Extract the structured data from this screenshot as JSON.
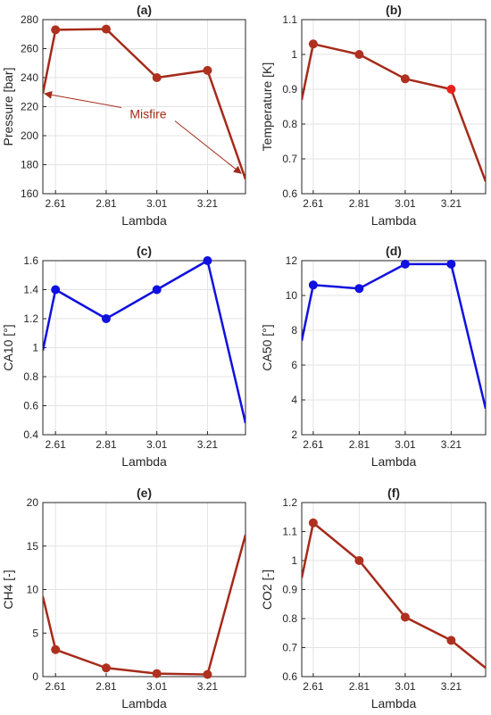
{
  "chart_data": [
    {
      "type": "line",
      "title": "(a)",
      "xlabel": "Lambda",
      "ylabel": "Pressure [bar]",
      "x": [
        2.56,
        2.61,
        2.81,
        3.01,
        3.21,
        3.36
      ],
      "xticks": [
        2.61,
        2.81,
        3.01,
        3.21
      ],
      "xticklabels": [
        "2.61",
        "2.81",
        "3.01",
        "3.21"
      ],
      "xlim": [
        2.56,
        3.36
      ],
      "ylim": [
        160,
        280
      ],
      "yticks": [
        160,
        180,
        200,
        220,
        240,
        260,
        280
      ],
      "yticklabels": [
        "160",
        "180",
        "200",
        "220",
        "240",
        "260",
        "280"
      ],
      "grid": true,
      "series": [
        {
          "color": "#a52a1a",
          "marker_color": "#b03020",
          "values": [
            229,
            273,
            273.5,
            240,
            245,
            170
          ],
          "markers": [
            false,
            true,
            true,
            true,
            true,
            false
          ]
        }
      ],
      "annotation": {
        "text": "Misfire",
        "color": "#a52a1a",
        "arrow_targets": [
          {
            "x": 2.56,
            "y": 229
          },
          {
            "x": 3.35,
            "y": 174
          }
        ]
      }
    },
    {
      "type": "line",
      "title": "(b)",
      "xlabel": "Lambda",
      "ylabel": "Temperature [K]",
      "x": [
        2.56,
        2.61,
        2.81,
        3.01,
        3.21,
        3.36
      ],
      "xticks": [
        2.61,
        2.81,
        3.01,
        3.21
      ],
      "xticklabels": [
        "2.61",
        "2.81",
        "3.01",
        "3.21"
      ],
      "xlim": [
        2.56,
        3.36
      ],
      "ylim": [
        0.6,
        1.1
      ],
      "yticks": [
        0.6,
        0.7,
        0.8,
        0.9,
        1.0,
        1.1
      ],
      "yticklabels": [
        "0.6",
        "0.7",
        "0.8",
        "0.9",
        "1",
        "1.1"
      ],
      "grid": true,
      "series": [
        {
          "color": "#a52a1a",
          "marker_color": "#b03020",
          "values": [
            0.87,
            1.03,
            1.0,
            0.93,
            0.9,
            0.635
          ],
          "markers": [
            false,
            true,
            true,
            true,
            true,
            false
          ],
          "last_marker_color": "#e8211a"
        }
      ]
    },
    {
      "type": "line",
      "title": "(c)",
      "xlabel": "Lambda",
      "ylabel": "CA10 [°]",
      "x": [
        2.56,
        2.61,
        2.81,
        3.01,
        3.21,
        3.36
      ],
      "xticks": [
        2.61,
        2.81,
        3.01,
        3.21
      ],
      "xticklabels": [
        "2.61",
        "2.81",
        "3.01",
        "3.21"
      ],
      "xlim": [
        2.56,
        3.36
      ],
      "ylim": [
        0.4,
        1.6
      ],
      "yticks": [
        0.4,
        0.6,
        0.8,
        1.0,
        1.2,
        1.4,
        1.6
      ],
      "yticklabels": [
        "0.4",
        "0.6",
        "0.8",
        "1",
        "1.2",
        "1.4",
        "1.6"
      ],
      "grid": true,
      "series": [
        {
          "color": "#1010e0",
          "marker_color": "#1010e0",
          "values": [
            0.98,
            1.4,
            1.2,
            1.4,
            1.6,
            0.48
          ],
          "markers": [
            false,
            true,
            true,
            true,
            true,
            false
          ]
        }
      ]
    },
    {
      "type": "line",
      "title": "(d)",
      "xlabel": "Lambda",
      "ylabel": "CA50 [°]",
      "x": [
        2.56,
        2.61,
        2.81,
        3.01,
        3.21,
        3.36
      ],
      "xticks": [
        2.61,
        2.81,
        3.01,
        3.21
      ],
      "xticklabels": [
        "2.61",
        "2.81",
        "3.01",
        "3.21"
      ],
      "xlim": [
        2.56,
        3.36
      ],
      "ylim": [
        2,
        12
      ],
      "yticks": [
        2,
        4,
        6,
        8,
        10,
        12
      ],
      "yticklabels": [
        "2",
        "4",
        "6",
        "8",
        "10",
        "12"
      ],
      "grid": true,
      "series": [
        {
          "color": "#1010e0",
          "marker_color": "#1010e0",
          "values": [
            7.4,
            10.6,
            10.4,
            11.8,
            11.8,
            3.5
          ],
          "markers": [
            false,
            true,
            true,
            true,
            true,
            false
          ]
        }
      ]
    },
    {
      "type": "line",
      "title": "(e)",
      "xlabel": "Lambda",
      "ylabel": "CH4 [-]",
      "x": [
        2.56,
        2.61,
        2.81,
        3.01,
        3.21,
        3.36
      ],
      "xticks": [
        2.61,
        2.81,
        3.01,
        3.21
      ],
      "xticklabels": [
        "2.61",
        "2.81",
        "3.01",
        "3.21"
      ],
      "xlim": [
        2.56,
        3.36
      ],
      "ylim": [
        0,
        20
      ],
      "yticks": [
        0,
        5,
        10,
        15,
        20
      ],
      "yticklabels": [
        "0",
        "5",
        "10",
        "15",
        "20"
      ],
      "grid": true,
      "series": [
        {
          "color": "#a52a1a",
          "marker_color": "#b03020",
          "values": [
            9.2,
            3.1,
            1.0,
            0.35,
            0.25,
            16.3
          ],
          "markers": [
            false,
            true,
            true,
            true,
            true,
            false
          ]
        }
      ]
    },
    {
      "type": "line",
      "title": "(f)",
      "xlabel": "Lambda",
      "ylabel": "CO2 [-]",
      "x": [
        2.56,
        2.61,
        2.81,
        3.01,
        3.21,
        3.36
      ],
      "xticks": [
        2.61,
        2.81,
        3.01,
        3.21
      ],
      "xticklabels": [
        "2.61",
        "2.81",
        "3.01",
        "3.21"
      ],
      "xlim": [
        2.56,
        3.36
      ],
      "ylim": [
        0.6,
        1.2
      ],
      "yticks": [
        0.6,
        0.7,
        0.8,
        0.9,
        1.0,
        1.1,
        1.2
      ],
      "yticklabels": [
        "0.6",
        "0.7",
        "0.8",
        "0.9",
        "1",
        "1.1",
        "1.2"
      ],
      "grid": true,
      "series": [
        {
          "color": "#a52a1a",
          "marker_color": "#b03020",
          "values": [
            0.94,
            1.13,
            1.0,
            0.805,
            0.725,
            0.63
          ],
          "markers": [
            false,
            true,
            true,
            true,
            true,
            false
          ]
        }
      ]
    }
  ]
}
